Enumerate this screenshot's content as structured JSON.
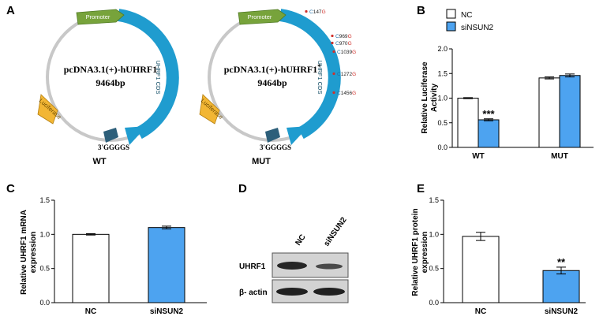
{
  "panels": {
    "A": {
      "letter": "A",
      "wt": {
        "feature_promoter": "Promoter",
        "feature_cds": "UHRF1 CDS",
        "feature_luc": "Luciferase",
        "name_line1": "pcDNA3.1(+)-hUHRF1",
        "size": "9464bp",
        "site": "3'GGGGS",
        "label": "WT"
      },
      "mut": {
        "feature_promoter": "Promoter",
        "feature_cds": "UHRF1 CDS",
        "feature_luc": "Luciferase",
        "name_line1": "pcDNA3.1(+)-hUHRF1",
        "name_sup": "*",
        "size": "9464bp",
        "site": "3'GGGGS",
        "label": "MUT",
        "mutations": [
          {
            "orig": "C",
            "pos": "147",
            "new": "G"
          },
          {
            "orig": "C",
            "pos": "969",
            "new": "G"
          },
          {
            "orig": "C",
            "pos": "970",
            "new": "G"
          },
          {
            "orig": "C",
            "pos": "1039",
            "new": "G"
          },
          {
            "orig": "C",
            "pos": "1272",
            "new": "G"
          },
          {
            "orig": "C",
            "pos": "1456",
            "new": "G"
          }
        ]
      }
    },
    "B": {
      "letter": "B"
    },
    "C": {
      "letter": "C"
    },
    "D": {
      "letter": "D",
      "lanes": [
        "NC",
        "siNSUN2"
      ],
      "rows": [
        "UHRF1",
        "β- actin"
      ]
    },
    "E": {
      "letter": "E"
    }
  },
  "colors": {
    "nc": "#ffffff",
    "si": "#4da3f0",
    "promoter": "#77a33b",
    "cds": "#1f9ccf",
    "luc": "#f2b634",
    "site": "#2d5f7a",
    "mut_red": "#d0302b"
  },
  "chart_data": [
    {
      "type": "bar",
      "panel": "B",
      "categories": [
        "WT",
        "MUT"
      ],
      "series": [
        {
          "name": "NC",
          "values": [
            1.0,
            1.41
          ]
        },
        {
          "name": "siNSUN2",
          "values": [
            0.56,
            1.46
          ]
        }
      ],
      "errors": [
        [
          0.01,
          0.02
        ],
        [
          0.02,
          0.03
        ]
      ],
      "annotations": [
        {
          "category": "WT",
          "series": "siNSUN2",
          "text": "***"
        }
      ],
      "ylabel": "Relative Luciferase Activity",
      "ylabel_line1": "Relative Luciferase",
      "ylabel_line2": "Activity",
      "ylim": [
        0,
        2.0
      ],
      "yticks": [
        "0.0",
        "0.5",
        "1.0",
        "1.5",
        "2.0"
      ],
      "legend": "top-left"
    },
    {
      "type": "bar",
      "panel": "C",
      "categories": [
        "NC",
        "siNSUN2"
      ],
      "values": [
        1.0,
        1.1
      ],
      "errors": [
        0.01,
        0.02
      ],
      "ylabel_line1": "Relative UHRF1 mRNA",
      "ylabel_line2": "expression",
      "ylim": [
        0,
        1.5
      ],
      "yticks": [
        "0.0",
        "0.5",
        "1.0",
        "1.5"
      ]
    },
    {
      "type": "bar",
      "panel": "E",
      "categories": [
        "NC",
        "siNSUN2"
      ],
      "values": [
        0.97,
        0.47
      ],
      "errors": [
        0.06,
        0.05
      ],
      "annotations": [
        {
          "category": "siNSUN2",
          "text": "**"
        }
      ],
      "ylabel_line1": "Relative UHRF1 protein",
      "ylabel_line2": "expression",
      "ylim": [
        0,
        1.5
      ],
      "yticks": [
        "0.0",
        "0.5",
        "1.0",
        "1.5"
      ]
    }
  ]
}
